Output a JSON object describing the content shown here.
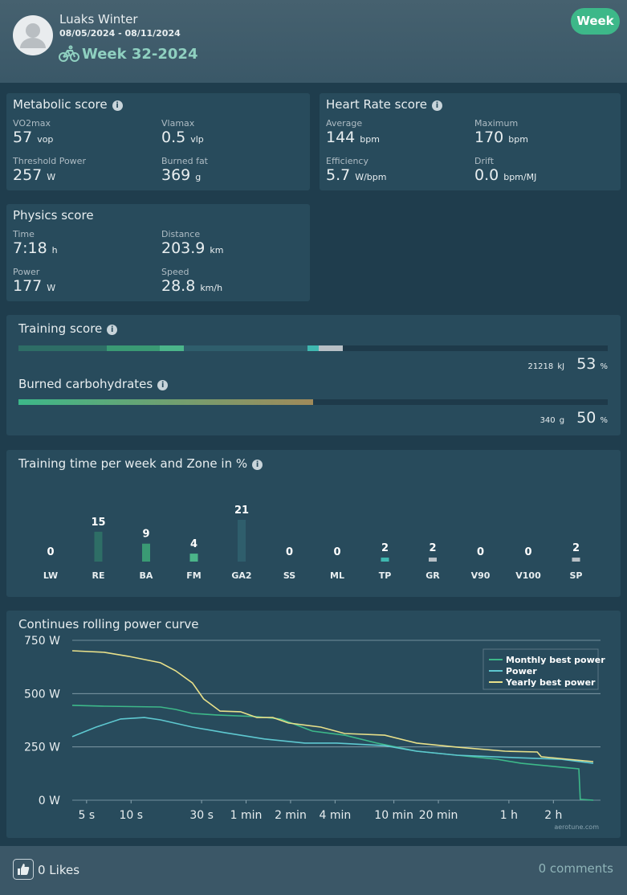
{
  "header": {
    "name": "Luaks Winter",
    "dates": "08/05/2024 - 08/11/2024",
    "week": "Week 32-2024",
    "period_button": "Week"
  },
  "metabolic": {
    "title": "Metabolic score",
    "items": [
      {
        "label": "VO2max",
        "value": 57,
        "unit": "vop"
      },
      {
        "label": "Vlamax",
        "value": 0.5,
        "unit": "vlp"
      },
      {
        "label": "Threshold Power",
        "value": 257,
        "unit": "W"
      },
      {
        "label": "Burned fat",
        "value": 369,
        "unit": "g"
      }
    ]
  },
  "heart_rate": {
    "title": "Heart Rate score",
    "items": [
      {
        "label": "Average",
        "value": 144,
        "unit": "bpm"
      },
      {
        "label": "Maximum",
        "value": 170,
        "unit": "bpm"
      },
      {
        "label": "Efficiency",
        "value": 5.7,
        "unit": "W/bpm"
      },
      {
        "label": "Drift",
        "value": "0.0",
        "unit": "bpm/MJ"
      }
    ]
  },
  "physics": {
    "title": "Physics score",
    "items": [
      {
        "label": "Time",
        "value": "7:18",
        "unit": "h"
      },
      {
        "label": "Distance",
        "value": 203.9,
        "unit": "km"
      },
      {
        "label": "Power",
        "value": 177,
        "unit": "W"
      },
      {
        "label": "Speed",
        "value": 28.8,
        "unit": "km/h"
      }
    ]
  },
  "training": {
    "title": "Training score",
    "energy": 21218,
    "energy_unit": "kJ",
    "percent": 53,
    "percent_unit": "%",
    "carbs_title": "Burned carbohydrates",
    "carbs": 340,
    "carbs_unit": "g",
    "carbs_percent": 50,
    "carbs_percent_unit": "%"
  },
  "chart_data": [
    {
      "type": "bar",
      "title": "Training time per week and Zone in %",
      "categories": [
        "LW",
        "RE",
        "BA",
        "FM",
        "GA2",
        "SS",
        "ML",
        "TP",
        "GR",
        "V90",
        "V100",
        "SP"
      ],
      "values": [
        0,
        15,
        9,
        4,
        21,
        0,
        0,
        2,
        2,
        0,
        0,
        2
      ],
      "colors": [
        "#2e6e66",
        "#2e6e66",
        "#3a9a74",
        "#4bb58a",
        "#2f5e6c",
        "#2f5e6c",
        "#2f5e6c",
        "#3fb8b0",
        "#b8c0c6",
        "#b8c0c6",
        "#b8c0c6",
        "#b8c0c6"
      ]
    },
    {
      "type": "line",
      "title": "Continues rolling power curve",
      "log_x": true,
      "xlim": [
        4,
        15000
      ],
      "ylim": [
        0,
        750
      ],
      "grid": true,
      "legend": "upper right",
      "watermark": "aerotune.com",
      "xticks": [
        {
          "value": 5,
          "label": "5 s"
        },
        {
          "value": 10,
          "label": "10 s"
        },
        {
          "value": 30,
          "label": "30 s"
        },
        {
          "value": 60,
          "label": "1 min"
        },
        {
          "value": 120,
          "label": "2 min"
        },
        {
          "value": 240,
          "label": "4 min"
        },
        {
          "value": 600,
          "label": "10 min"
        },
        {
          "value": 1200,
          "label": "20 min"
        },
        {
          "value": 3600,
          "label": "1 h"
        },
        {
          "value": 7200,
          "label": "2 h"
        }
      ],
      "yticks": [
        {
          "value": 0,
          "label": "0 W"
        },
        {
          "value": 250,
          "label": "250 W"
        },
        {
          "value": 500,
          "label": "500 W"
        },
        {
          "value": 750,
          "label": "750 W"
        }
      ],
      "series": [
        {
          "name": "Monthly best power",
          "color": "#3db889",
          "x": [
            4,
            6.6,
            15.8,
            20,
            26,
            38,
            71,
            103,
            169,
            279,
            460,
            856,
            1600,
            3000,
            4360,
            8150,
            10700,
            10950,
            13400
          ],
          "values": [
            445,
            441,
            437,
            426,
            407,
            400,
            392,
            381,
            324,
            305,
            268,
            230,
            211,
            192,
            173,
            155,
            147,
            4,
            0
          ]
        },
        {
          "name": "Power",
          "color": "#5ec8d0",
          "x": [
            4,
            5.8,
            8.5,
            12.3,
            15.8,
            26,
            43,
            80,
            150,
            246,
            520,
            856,
            1600,
            3850,
            8150,
            13400
          ],
          "values": [
            298,
            343,
            381,
            388,
            377,
            343,
            317,
            287,
            268,
            268,
            256,
            230,
            211,
            200,
            192,
            173
          ]
        },
        {
          "name": "Yearly best power",
          "color": "#e8e08a",
          "x": [
            4,
            6.6,
            9.6,
            15.8,
            20,
            26,
            31,
            40,
            55,
            71,
            91,
            116,
            192,
            279,
            520,
            856,
            1600,
            3400,
            5600,
            5960,
            13400
          ],
          "values": [
            701,
            694,
            675,
            645,
            607,
            550,
            475,
            418,
            415,
            388,
            388,
            362,
            343,
            313,
            305,
            268,
            249,
            230,
            226,
            204,
            181
          ]
        }
      ]
    }
  ],
  "footer": {
    "likes": "0 Likes",
    "comments": "0 comments"
  }
}
